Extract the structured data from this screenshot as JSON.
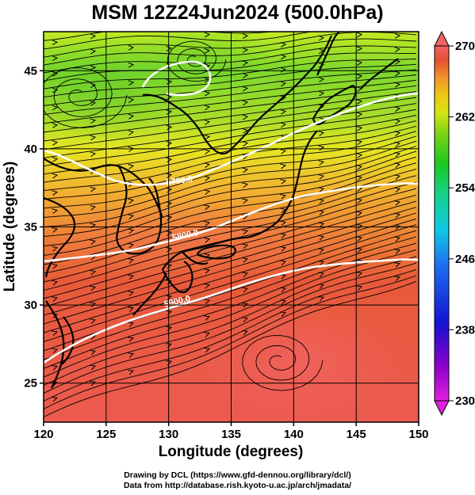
{
  "title": "MSM 12Z24Jun2024 (500.0hPa)",
  "map": {
    "x_axis": {
      "label": "Longitude (degrees)",
      "range": [
        120,
        150
      ],
      "ticks": [
        {
          "value": 120,
          "label": "120"
        },
        {
          "value": 125,
          "label": "125"
        },
        {
          "value": 130,
          "label": "130"
        },
        {
          "value": 135,
          "label": "135"
        },
        {
          "value": 140,
          "label": "140"
        },
        {
          "value": 145,
          "label": "145"
        },
        {
          "value": 150,
          "label": "150"
        }
      ]
    },
    "y_axis": {
      "label": "Latitude  (degrees)",
      "range": [
        22.5,
        47.5
      ],
      "ticks": [
        {
          "value": 25,
          "label": "25"
        },
        {
          "value": 30,
          "label": "30"
        },
        {
          "value": 35,
          "label": "35"
        },
        {
          "value": 40,
          "label": "40"
        },
        {
          "value": 45,
          "label": "45"
        }
      ]
    },
    "grid": true,
    "shading_variable": "temperature",
    "streamlines": "wind",
    "geopotential_contours": [
      {
        "value": 5700,
        "label": "5700.0"
      },
      {
        "value": 5800,
        "label": "5800.0"
      },
      {
        "value": 5900,
        "label": "5900.0"
      }
    ]
  },
  "colorbar": {
    "min": 230,
    "max": 270,
    "ticks": [
      {
        "value": 270,
        "label": "270"
      },
      {
        "value": 262,
        "label": "262"
      },
      {
        "value": 254,
        "label": "254"
      },
      {
        "value": 246,
        "label": "246"
      },
      {
        "value": 238,
        "label": "238"
      },
      {
        "value": 230,
        "label": "230"
      }
    ],
    "colors": [
      "#e020e0",
      "#8a00c8",
      "#1414d2",
      "#1e6ef0",
      "#10c8e6",
      "#14d28c",
      "#1ec81e",
      "#78d214",
      "#d2e614",
      "#f0c814",
      "#f0962d",
      "#e65032",
      "#f06464"
    ]
  },
  "credits": {
    "line1": "Drawing by DCL (https://www.gfd-dennou.org/library/dcl/)",
    "line2": "Data from http://database.rish.kyoto-u.ac.jp/arch/jmadata/"
  }
}
